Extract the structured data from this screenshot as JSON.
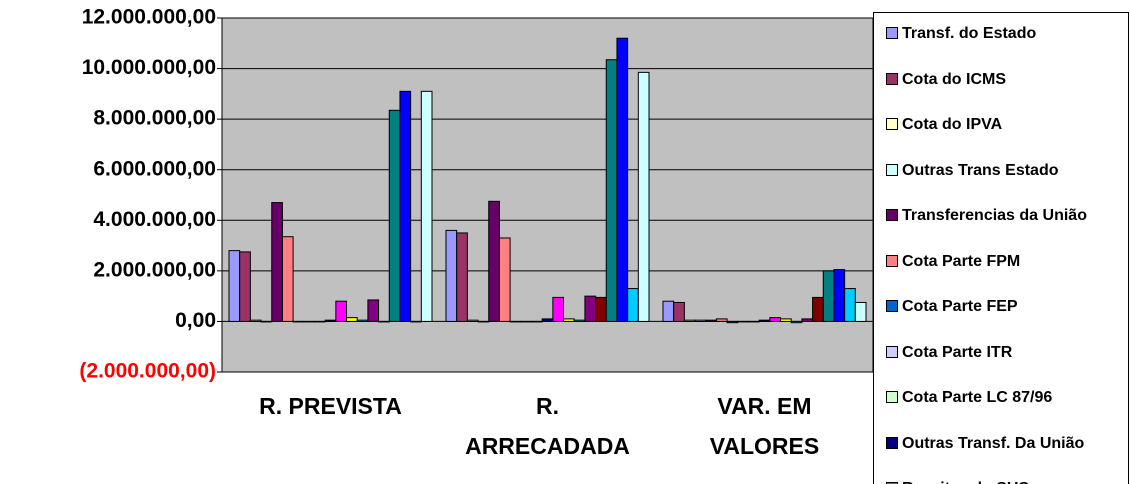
{
  "chart_data": {
    "type": "bar",
    "categories": [
      "R. PREVISTA",
      "R.\nARRECADADA",
      "VAR. EM\nVALORES"
    ],
    "ylim": [
      -2000000,
      12000000
    ],
    "yticks": [
      {
        "value": -2000000,
        "label": "(2.000.000,00)"
      },
      {
        "value": 0,
        "label": "0,00"
      },
      {
        "value": 2000000,
        "label": "2.000.000,00"
      },
      {
        "value": 4000000,
        "label": "4.000.000,00"
      },
      {
        "value": 6000000,
        "label": "6.000.000,00"
      },
      {
        "value": 8000000,
        "label": "8.000.000,00"
      },
      {
        "value": 10000000,
        "label": "10.000.000,00"
      },
      {
        "value": 12000000,
        "label": "12.000.000,00"
      }
    ],
    "negative_tick_color": "#ff0000",
    "grid": true,
    "plot_color": "#c0c0c0",
    "legend": "right",
    "series": [
      {
        "name": "Transf. do Estado",
        "color": "#9999ff",
        "values": [
          2800000,
          3600000,
          800000
        ]
      },
      {
        "name": "Cota do ICMS",
        "color": "#993366",
        "values": [
          2750000,
          3500000,
          750000
        ]
      },
      {
        "name": "Cota do IPVA",
        "color": "#ffffcc",
        "values": [
          50000,
          50000,
          50000
        ]
      },
      {
        "name": "Outras Trans Estado",
        "color": "#ccffff",
        "values": [
          0,
          0,
          50000
        ]
      },
      {
        "name": "Transferencias da União",
        "color": "#660066",
        "values": [
          4700000,
          4750000,
          50000
        ]
      },
      {
        "name": "Cota Parte FPM",
        "color": "#ff8080",
        "values": [
          3350000,
          3300000,
          100000
        ]
      },
      {
        "name": "Cota Parte FEP",
        "color": "#0066cc",
        "values": [
          0,
          0,
          -50000
        ]
      },
      {
        "name": "Cota Parte ITR",
        "color": "#ccccff",
        "values": [
          0,
          0,
          0
        ]
      },
      {
        "name": "Cota Parte LC 87/96",
        "color": "#ccffcc",
        "values": [
          0,
          0,
          0
        ]
      },
      {
        "name": "Outras Transf. Da União",
        "color": "#000080",
        "values": [
          50000,
          100000,
          50000
        ]
      },
      {
        "name": "Receitas do SUS",
        "color": "#ff00ff",
        "values": [
          800000,
          950000,
          150000
        ]
      },
      {
        "color": "#ffff00",
        "values": [
          150000,
          100000,
          100000
        ]
      },
      {
        "color": "#00ffff",
        "values": [
          50000,
          50000,
          -50000
        ]
      },
      {
        "color": "#800080",
        "values": [
          850000,
          1000000,
          100000
        ]
      },
      {
        "color": "#800000",
        "values": [
          0,
          950000,
          950000
        ]
      },
      {
        "color": "#008080",
        "values": [
          8350000,
          10350000,
          2000000
        ]
      },
      {
        "color": "#0000ff",
        "values": [
          9100000,
          11200000,
          2050000
        ]
      },
      {
        "color": "#00ccff",
        "values": [
          0,
          1300000,
          1300000
        ]
      },
      {
        "color": "#ccffff",
        "values": [
          9100000,
          9850000,
          750000
        ]
      }
    ]
  }
}
